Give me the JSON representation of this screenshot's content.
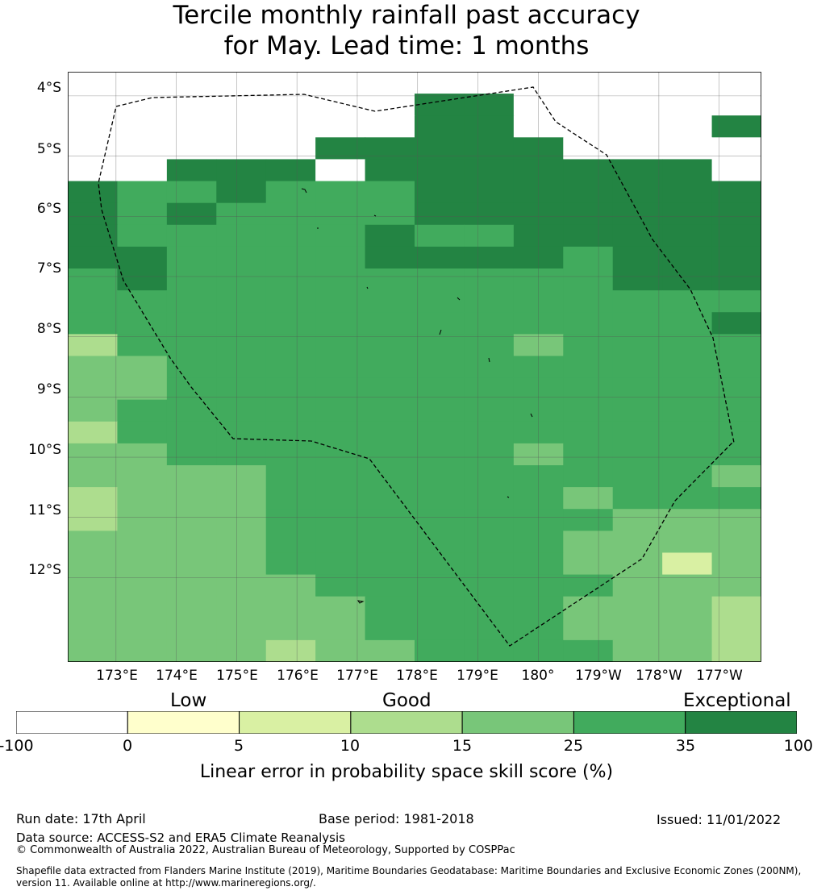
{
  "title": {
    "line1": "Tercile monthly rainfall past accuracy",
    "line2": "for May. Lead time: 1 months"
  },
  "map": {
    "latitude_labels": [
      "4°S",
      "5°S",
      "6°S",
      "7°S",
      "8°S",
      "9°S",
      "10°S",
      "11°S",
      "12°S"
    ],
    "longitude_labels": [
      "173°E",
      "174°E",
      "175°E",
      "176°E",
      "177°E",
      "178°E",
      "179°E",
      "180°",
      "179°W",
      "178°W",
      "177°W"
    ],
    "extent": {
      "lon": [
        172.2,
        183.7
      ],
      "lat": [
        -3.6,
        -13.4
      ]
    },
    "gridlines": true,
    "boundary": "dashed EEZ line",
    "color_grid": [
      [
        7,
        7,
        7,
        7,
        7,
        7,
        7,
        7,
        7,
        7,
        7,
        7,
        7,
        7
      ],
      [
        7,
        7,
        7,
        7,
        7,
        7,
        7,
        6,
        6,
        7,
        7,
        7,
        7,
        7
      ],
      [
        7,
        7,
        7,
        7,
        7,
        7,
        7,
        6,
        6,
        7,
        7,
        7,
        7,
        6
      ],
      [
        7,
        7,
        7,
        7,
        7,
        6,
        6,
        6,
        6,
        6,
        7,
        7,
        7,
        7
      ],
      [
        7,
        7,
        6,
        6,
        6,
        7,
        6,
        6,
        6,
        6,
        6,
        6,
        6,
        7
      ],
      [
        6,
        5,
        5,
        6,
        5,
        5,
        5,
        6,
        6,
        6,
        6,
        6,
        6,
        6
      ],
      [
        6,
        5,
        6,
        5,
        5,
        5,
        5,
        6,
        6,
        6,
        6,
        6,
        6,
        6
      ],
      [
        6,
        5,
        5,
        5,
        5,
        5,
        6,
        5,
        5,
        6,
        6,
        6,
        6,
        6
      ],
      [
        6,
        6,
        5,
        5,
        5,
        5,
        6,
        6,
        6,
        6,
        5,
        6,
        6,
        6
      ],
      [
        5,
        6,
        5,
        5,
        5,
        5,
        5,
        5,
        5,
        5,
        5,
        6,
        6,
        6
      ],
      [
        5,
        5,
        5,
        5,
        5,
        5,
        5,
        5,
        5,
        5,
        5,
        5,
        5,
        5
      ],
      [
        5,
        5,
        5,
        5,
        5,
        5,
        5,
        5,
        5,
        5,
        5,
        5,
        5,
        6
      ],
      [
        3,
        5,
        5,
        5,
        5,
        5,
        5,
        5,
        5,
        4,
        5,
        5,
        5,
        5
      ],
      [
        4,
        4,
        5,
        5,
        5,
        5,
        5,
        5,
        5,
        5,
        5,
        5,
        5,
        5
      ],
      [
        4,
        4,
        5,
        5,
        5,
        5,
        5,
        5,
        5,
        5,
        5,
        5,
        5,
        5
      ],
      [
        4,
        5,
        5,
        5,
        5,
        5,
        5,
        5,
        5,
        5,
        5,
        5,
        5,
        5
      ],
      [
        3,
        5,
        5,
        5,
        5,
        5,
        5,
        5,
        5,
        5,
        5,
        5,
        5,
        5
      ],
      [
        4,
        4,
        5,
        5,
        5,
        5,
        5,
        5,
        5,
        4,
        5,
        5,
        5,
        5
      ],
      [
        4,
        4,
        4,
        4,
        5,
        5,
        5,
        5,
        5,
        5,
        5,
        5,
        5,
        4
      ],
      [
        3,
        4,
        4,
        4,
        5,
        5,
        5,
        5,
        5,
        5,
        4,
        5,
        5,
        5
      ],
      [
        3,
        4,
        4,
        4,
        5,
        5,
        5,
        5,
        5,
        5,
        5,
        4,
        4,
        4
      ],
      [
        4,
        4,
        4,
        4,
        5,
        5,
        5,
        5,
        5,
        5,
        4,
        4,
        4,
        4
      ],
      [
        4,
        4,
        4,
        4,
        5,
        5,
        5,
        5,
        5,
        5,
        4,
        4,
        2,
        4
      ],
      [
        4,
        4,
        4,
        4,
        4,
        5,
        5,
        5,
        5,
        5,
        5,
        4,
        4,
        4
      ],
      [
        4,
        4,
        4,
        4,
        4,
        4,
        5,
        5,
        5,
        5,
        4,
        4,
        4,
        3
      ],
      [
        4,
        4,
        4,
        4,
        4,
        4,
        5,
        5,
        5,
        5,
        4,
        4,
        4,
        3
      ],
      [
        4,
        4,
        4,
        4,
        3,
        4,
        4,
        5,
        5,
        5,
        5,
        4,
        4,
        3
      ]
    ]
  },
  "legend": {
    "categories": [
      "Low",
      "Good",
      "Exceptional"
    ],
    "tick_labels": [
      "-100",
      "0",
      "5",
      "10",
      "15",
      "25",
      "35",
      "100"
    ],
    "bin_colors": [
      "#ffffff",
      "#ffffcc",
      "#d9f0a3",
      "#addd8e",
      "#78c679",
      "#41ab5d",
      "#238443"
    ],
    "label": "Linear error in probability space skill score (%)"
  },
  "footer": {
    "run_date": "Run date: 17th April",
    "base_period": "Base period: 1981-2018",
    "issued": "Issued: 11/01/2022",
    "data_source": "Data source: ACCESS-S2 and ERA5 Climate Reanalysis",
    "copyright": "© Commonwealth of Australia 2022, Australian Bureau of Meteorology, Supported by COSPPac",
    "shapefile_line1": "Shapefile data extracted from Flanders Marine Institute (2019), Maritime Boundaries Geodatabase: Maritime Boundaries and Exclusive Economic Zones (200NM),",
    "shapefile_line2": "version 11. Available online at http://www.marineregions.org/."
  }
}
